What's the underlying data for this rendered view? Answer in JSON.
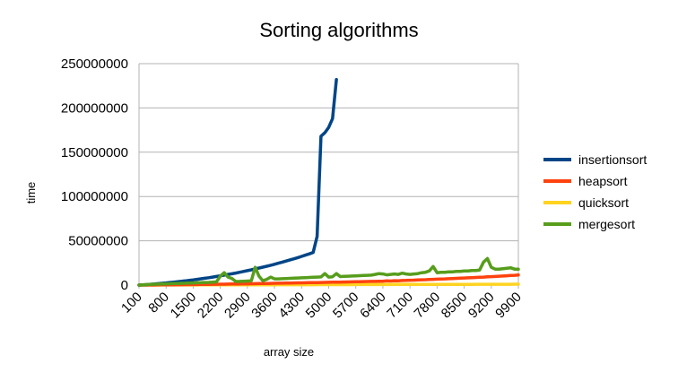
{
  "chart_data": {
    "type": "line",
    "title": "Sorting algorithms",
    "xlabel": "array size",
    "ylabel": "time",
    "ylim": [
      0,
      250000000
    ],
    "yticks": [
      "0",
      "50000000",
      "100000000",
      "150000000",
      "200000000",
      "250000000"
    ],
    "xtick_labels": [
      "100",
      "800",
      "1500",
      "2200",
      "2900",
      "3600",
      "4300",
      "5000",
      "5700",
      "6400",
      "7100",
      "7800",
      "8500",
      "9200",
      "9900"
    ],
    "x_start": 100,
    "x_step": 100,
    "grid": true,
    "legend": "right",
    "series": [
      {
        "name": "insertionsort",
        "color": "#004586",
        "values": [
          0,
          200000,
          500000,
          900000,
          1200000,
          1600000,
          2000000,
          2400000,
          2900000,
          3300000,
          3800000,
          4300000,
          4800000,
          5400000,
          5900000,
          6500000,
          7100000,
          7700000,
          8300000,
          9000000,
          9700000,
          10400000,
          11200000,
          12000000,
          12800000,
          13600000,
          14500000,
          15400000,
          16300000,
          17200000,
          18200000,
          19200000,
          20200000,
          21300000,
          22400000,
          23500000,
          24700000,
          25900000,
          27100000,
          28400000,
          29700000,
          31000000,
          32400000,
          33800000,
          35200000,
          36800000,
          55000000,
          168000000,
          172000000,
          178000000,
          188000000,
          232000000
        ]
      },
      {
        "name": "heapsort",
        "color": "#ff420e",
        "values": [
          0,
          30000,
          60000,
          100000,
          140000,
          180000,
          220000,
          260000,
          300000,
          350000,
          400000,
          450000,
          500000,
          550000,
          600000,
          650000,
          700000,
          760000,
          820000,
          880000,
          940000,
          1000000,
          1060000,
          1120000,
          1180000,
          1250000,
          1320000,
          1390000,
          1460000,
          1530000,
          1600000,
          1680000,
          1760000,
          1840000,
          1920000,
          2000000,
          2080000,
          2160000,
          2240000,
          2320000,
          2400000,
          2480000,
          2560000,
          2640000,
          2720000,
          2800000,
          2880000,
          2960000,
          3040000,
          3120000,
          3200000,
          3290000,
          3380000,
          3470000,
          3560000,
          3650000,
          3740000,
          3830000,
          3920000,
          4010000,
          4100000,
          4200000,
          4300000,
          4400000,
          4800000,
          4600000,
          5000000,
          4800000,
          5200000,
          5300000,
          5500000,
          5600000,
          5800000,
          6000000,
          6100000,
          6300000,
          6500000,
          6700000,
          6900000,
          7000000,
          7200000,
          7400000,
          7600000,
          7800000,
          8000000,
          8200000,
          8400000,
          8600000,
          8800000,
          9000000,
          9300000,
          9500000,
          9700000,
          10000000,
          10200000,
          10500000,
          10800000,
          11000000,
          11300000
        ]
      },
      {
        "name": "quicksort",
        "color": "#ffd320",
        "values": [
          0,
          10000,
          20000,
          30000,
          40000,
          50000,
          60000,
          70000,
          80000,
          90000,
          100000,
          110000,
          120000,
          130000,
          140000,
          150000,
          160000,
          170000,
          180000,
          190000,
          200000,
          210000,
          220000,
          230000,
          240000,
          250000,
          260000,
          270000,
          280000,
          290000,
          300000,
          310000,
          320000,
          330000,
          340000,
          350000,
          360000,
          370000,
          380000,
          390000,
          400000,
          410000,
          420000,
          430000,
          440000,
          450000,
          460000,
          470000,
          480000,
          490000,
          500000,
          510000,
          520000,
          530000,
          540000,
          550000,
          560000,
          570000,
          580000,
          590000,
          600000,
          610000,
          620000,
          630000,
          640000,
          650000,
          660000,
          670000,
          680000,
          690000,
          700000,
          710000,
          720000,
          730000,
          740000,
          750000,
          760000,
          770000,
          780000,
          790000,
          800000,
          810000,
          820000,
          830000,
          840000,
          850000,
          860000,
          870000,
          880000,
          890000,
          900000,
          910000,
          920000,
          930000,
          940000,
          950000,
          960000,
          970000,
          980000
        ]
      },
      {
        "name": "mergesort",
        "color": "#579d1c",
        "values": [
          0,
          300000,
          600000,
          800000,
          1000000,
          1100000,
          1300000,
          1400000,
          1500000,
          1700000,
          1800000,
          2000000,
          2100000,
          2300000,
          2400000,
          2600000,
          2700000,
          2900000,
          3000000,
          3200000,
          3500000,
          10000000,
          14000000,
          9000000,
          7500000,
          4000000,
          4200000,
          4400000,
          4600000,
          4800000,
          20000000,
          10000000,
          5000000,
          6500000,
          9000000,
          7000000,
          7000000,
          7200000,
          7400000,
          7600000,
          7800000,
          8000000,
          8200000,
          8400000,
          8600000,
          8800000,
          9000000,
          9200000,
          13000000,
          9000000,
          9400000,
          13000000,
          9600000,
          9800000,
          10000000,
          10200000,
          10400000,
          10600000,
          10800000,
          11000000,
          11200000,
          12000000,
          13000000,
          12500000,
          11500000,
          12000000,
          12500000,
          12000000,
          13500000,
          12500000,
          12000000,
          12500000,
          13000000,
          14000000,
          14500000,
          16000000,
          21000000,
          14000000,
          14500000,
          14500000,
          15000000,
          15000000,
          15500000,
          15500000,
          16000000,
          16000000,
          16500000,
          16500000,
          17000000,
          26000000,
          30000000,
          20000000,
          18000000,
          18000000,
          18500000,
          19000000,
          19500000,
          18000000,
          18000000
        ]
      }
    ]
  }
}
